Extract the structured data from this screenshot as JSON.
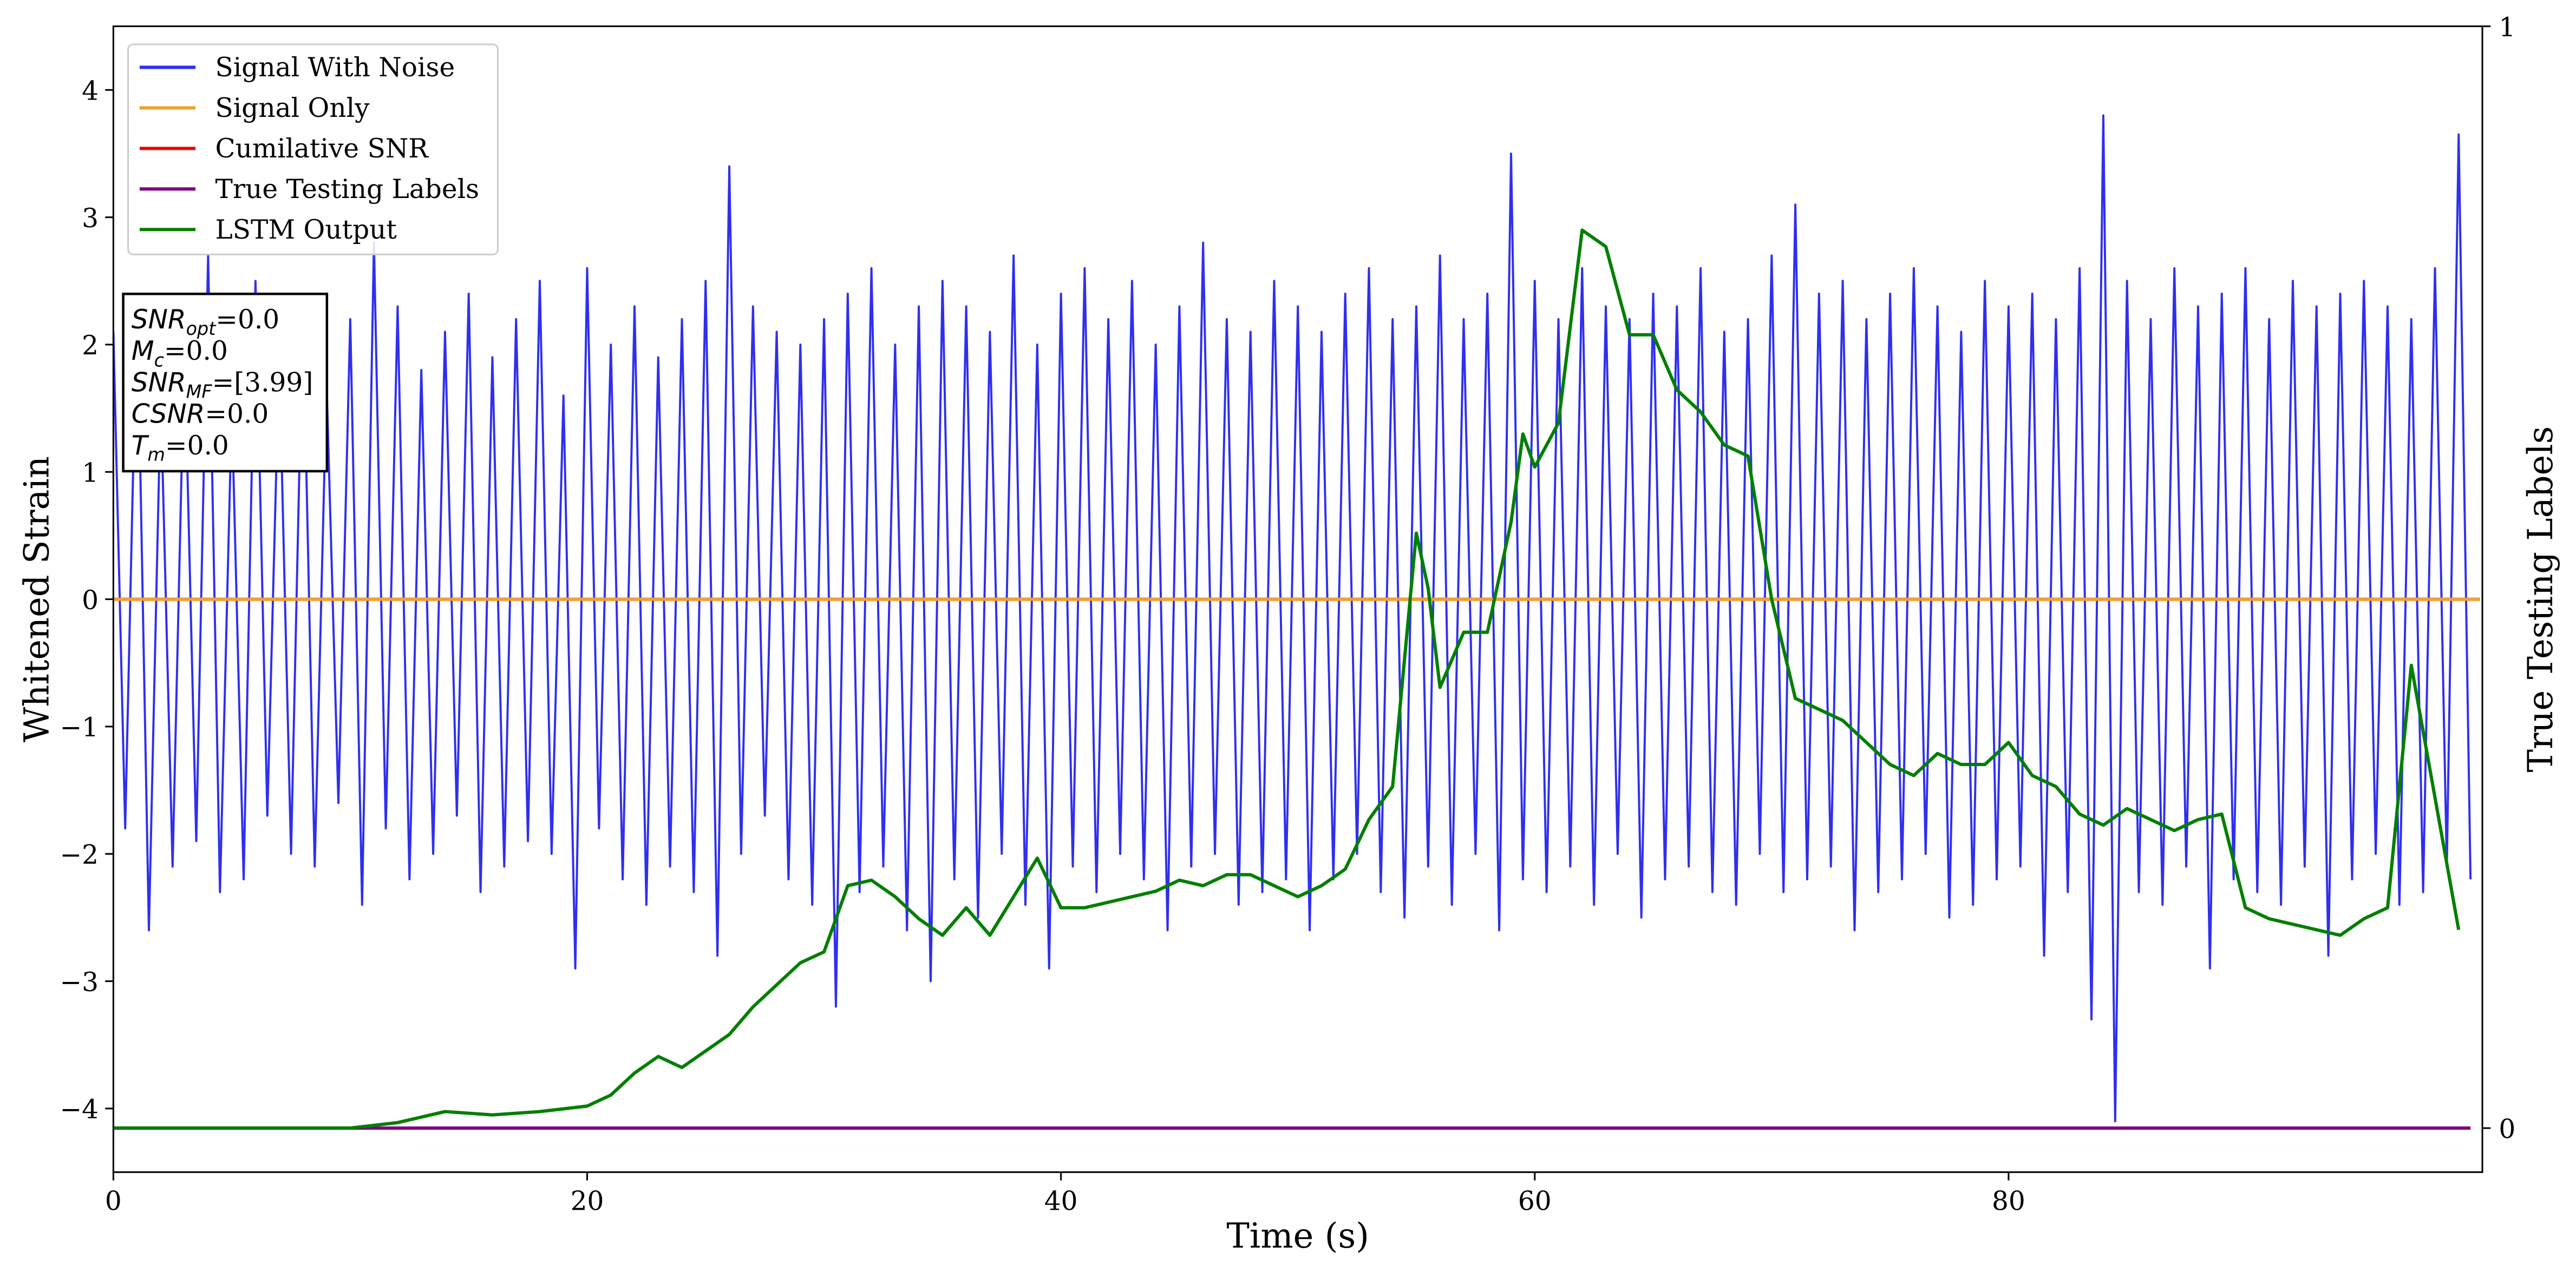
{
  "chart_data": {
    "type": "line",
    "xlabel": "Time (s)",
    "ylabel": "Whitened Strain",
    "y2label": "True Testing Labels",
    "xlim": [
      0,
      100
    ],
    "xticks": [
      0,
      20,
      40,
      60,
      80
    ],
    "ylim": [
      -4.5,
      4.5
    ],
    "yticks": [
      {
        "value": -4,
        "label": "−4"
      },
      {
        "value": -3,
        "label": "−3"
      },
      {
        "value": -2,
        "label": "−2"
      },
      {
        "value": -1,
        "label": "−1"
      },
      0,
      1,
      2,
      3,
      4
    ],
    "y2lim": [
      -0.04,
      1
    ],
    "y2ticks": [
      0,
      1
    ],
    "legend": "upper left",
    "series": [
      {
        "name": "Signal With Noise",
        "color": "#2f2ff0",
        "x": [
          0,
          0.5,
          1,
          1.5,
          2,
          2.5,
          3,
          3.5,
          4,
          4.5,
          5,
          5.5,
          6,
          6.5,
          7,
          7.5,
          8,
          8.5,
          9,
          9.5,
          10,
          10.5,
          11,
          11.5,
          12,
          12.5,
          13,
          13.5,
          14,
          14.5,
          15,
          15.5,
          16,
          16.5,
          17,
          17.5,
          18,
          18.5,
          19,
          19.5,
          20,
          20.5,
          21,
          21.5,
          22,
          22.5,
          23,
          23.5,
          24,
          24.5,
          25,
          25.5,
          26,
          26.5,
          27,
          27.5,
          28,
          28.5,
          29,
          29.5,
          30,
          30.5,
          31,
          31.5,
          32,
          32.5,
          33,
          33.5,
          34,
          34.5,
          35,
          35.5,
          36,
          36.5,
          37,
          37.5,
          38,
          38.5,
          39,
          39.5,
          40,
          40.5,
          41,
          41.5,
          42,
          42.5,
          43,
          43.5,
          44,
          44.5,
          45,
          45.5,
          46,
          46.5,
          47,
          47.5,
          48,
          48.5,
          49,
          49.5,
          50,
          50.5,
          51,
          51.5,
          52,
          52.5,
          53,
          53.5,
          54,
          54.5,
          55,
          55.5,
          56,
          56.5,
          57,
          57.5,
          58,
          58.5,
          59,
          59.5,
          60,
          60.5,
          61,
          61.5,
          62,
          62.5,
          63,
          63.5,
          64,
          64.5,
          65,
          65.5,
          66,
          66.5,
          67,
          67.5,
          68,
          68.5,
          69,
          69.5,
          70,
          70.5,
          71,
          71.5,
          72,
          72.5,
          73,
          73.5,
          74,
          74.5,
          75,
          75.5,
          76,
          76.5,
          77,
          77.5,
          78,
          78.5,
          79,
          79.5,
          80,
          80.5,
          81,
          81.5,
          82,
          82.5,
          83,
          83.5,
          84,
          84.5,
          85,
          85.5,
          86,
          86.5,
          87,
          87.5,
          88,
          88.5,
          89,
          89.5,
          90,
          90.5,
          91,
          91.5,
          92,
          92.5,
          93,
          93.5,
          94,
          94.5,
          95,
          95.5,
          96,
          96.5,
          97,
          97.5,
          98,
          98.5,
          99,
          99.5
        ],
        "values": [
          2.1,
          -1.8,
          2.4,
          -2.6,
          1.6,
          -2.1,
          2.0,
          -1.9,
          2.7,
          -2.3,
          1.5,
          -2.2,
          2.5,
          -1.7,
          1.9,
          -2.0,
          2.3,
          -2.1,
          1.7,
          -1.6,
          2.2,
          -2.4,
          2.8,
          -1.8,
          2.3,
          -2.2,
          1.8,
          -2.0,
          2.1,
          -1.7,
          2.4,
          -2.3,
          1.9,
          -2.1,
          2.2,
          -1.9,
          2.5,
          -2.0,
          1.6,
          -2.9,
          2.6,
          -1.8,
          2.0,
          -2.2,
          2.3,
          -2.4,
          1.9,
          -2.1,
          2.2,
          -2.3,
          2.5,
          -2.8,
          3.4,
          -2.0,
          2.3,
          -1.7,
          2.1,
          -2.2,
          2.0,
          -2.4,
          2.2,
          -3.2,
          2.4,
          -2.3,
          2.6,
          -2.1,
          2.0,
          -2.6,
          2.3,
          -3.0,
          2.5,
          -2.2,
          2.3,
          -2.5,
          2.1,
          -2.0,
          2.7,
          -2.4,
          2.0,
          -2.9,
          2.4,
          -2.1,
          2.6,
          -2.3,
          2.2,
          -2.0,
          2.5,
          -2.2,
          2.0,
          -2.6,
          2.3,
          -2.1,
          2.8,
          -2.0,
          2.2,
          -2.4,
          2.1,
          -2.3,
          2.5,
          -2.2,
          2.3,
          -2.6,
          2.1,
          -2.2,
          2.4,
          -2.0,
          2.6,
          -2.3,
          2.2,
          -2.5,
          2.3,
          -2.1,
          2.7,
          -2.4,
          2.2,
          -2.0,
          2.4,
          -2.6,
          3.5,
          -2.2,
          2.5,
          -2.3,
          2.2,
          -2.1,
          2.6,
          -2.4,
          2.3,
          -2.0,
          2.2,
          -2.5,
          2.4,
          -2.2,
          2.3,
          -2.1,
          2.6,
          -2.3,
          2.1,
          -2.4,
          2.2,
          -2.0,
          2.7,
          -2.3,
          3.1,
          -2.2,
          2.4,
          -2.1,
          2.5,
          -2.6,
          2.2,
          -2.3,
          2.4,
          -2.2,
          2.6,
          -2.0,
          2.3,
          -2.5,
          2.1,
          -2.4,
          2.5,
          -2.2,
          2.3,
          -2.1,
          2.4,
          -2.8,
          2.2,
          -2.3,
          2.6,
          -3.3,
          3.8,
          -4.1,
          2.5,
          -2.3,
          2.2,
          -2.4,
          2.6,
          -2.1,
          2.3,
          -2.9,
          2.4,
          -2.2,
          2.6,
          -2.3,
          2.2,
          -2.4,
          2.5,
          -2.1,
          2.3,
          -2.8,
          2.4,
          -2.2,
          2.5,
          -2.0,
          2.3,
          -2.4,
          2.2,
          -2.3,
          2.6,
          -2.1,
          3.65,
          -2.2
        ]
      },
      {
        "name": "Signal Only",
        "color": "#f0a030",
        "x": [
          0,
          99.9
        ],
        "values": [
          0,
          0
        ]
      },
      {
        "name": "Cumilative SNR",
        "color": "#ee0000",
        "x": [
          0,
          99.9
        ],
        "values": [
          0,
          0
        ]
      },
      {
        "name": "True Testing Labels",
        "color": "#800080",
        "axis": "y2",
        "x": [
          0,
          99.5
        ],
        "values": [
          0,
          0
        ]
      },
      {
        "name": "LSTM Output",
        "color": "#007f00",
        "axis": "y2",
        "x": [
          0,
          10,
          12,
          14,
          16,
          18,
          20,
          21,
          22,
          23,
          24,
          25,
          26,
          27,
          28,
          29,
          30,
          31,
          32,
          33,
          34,
          35,
          36,
          37,
          38,
          39,
          40,
          41,
          42,
          43,
          44,
          45,
          46,
          47,
          48,
          49,
          50,
          51,
          52,
          53,
          54,
          55,
          55.5,
          56,
          57,
          58,
          59,
          59.5,
          60,
          61,
          62,
          63,
          64,
          65,
          66,
          67,
          68,
          69,
          70,
          71,
          72,
          73,
          74,
          75,
          76,
          77,
          78,
          79,
          80,
          81,
          82,
          83,
          84,
          85,
          86,
          87,
          88,
          89,
          90,
          91,
          92,
          93,
          94,
          95,
          96,
          97,
          98,
          99
        ],
        "values": [
          0,
          0,
          0.005,
          0.015,
          0.012,
          0.015,
          0.02,
          0.03,
          0.05,
          0.065,
          0.055,
          0.07,
          0.085,
          0.11,
          0.13,
          0.15,
          0.16,
          0.22,
          0.225,
          0.21,
          0.19,
          0.175,
          0.2,
          0.175,
          0.21,
          0.245,
          0.2,
          0.2,
          0.205,
          0.21,
          0.215,
          0.225,
          0.22,
          0.23,
          0.23,
          0.22,
          0.21,
          0.22,
          0.235,
          0.28,
          0.31,
          0.54,
          0.49,
          0.4,
          0.45,
          0.45,
          0.55,
          0.63,
          0.6,
          0.64,
          0.815,
          0.8,
          0.72,
          0.72,
          0.67,
          0.65,
          0.62,
          0.61,
          0.48,
          0.39,
          0.38,
          0.37,
          0.35,
          0.33,
          0.32,
          0.34,
          0.33,
          0.33,
          0.35,
          0.32,
          0.31,
          0.285,
          0.275,
          0.29,
          0.28,
          0.27,
          0.28,
          0.285,
          0.2,
          0.19,
          0.185,
          0.18,
          0.175,
          0.19,
          0.2,
          0.42,
          0.3,
          0.18
        ]
      }
    ],
    "annotations": [
      {
        "label": "SNR",
        "sub": "opt",
        "text": "=0.0"
      },
      {
        "label": "M",
        "sub": "c",
        "text": "=0.0"
      },
      {
        "label": "SNR",
        "sub": "MF",
        "text": "=[3.99]"
      },
      {
        "label": "CSNR",
        "text": "=0.0"
      },
      {
        "label": "T",
        "sub": "m",
        "text": "=0.0"
      }
    ]
  }
}
